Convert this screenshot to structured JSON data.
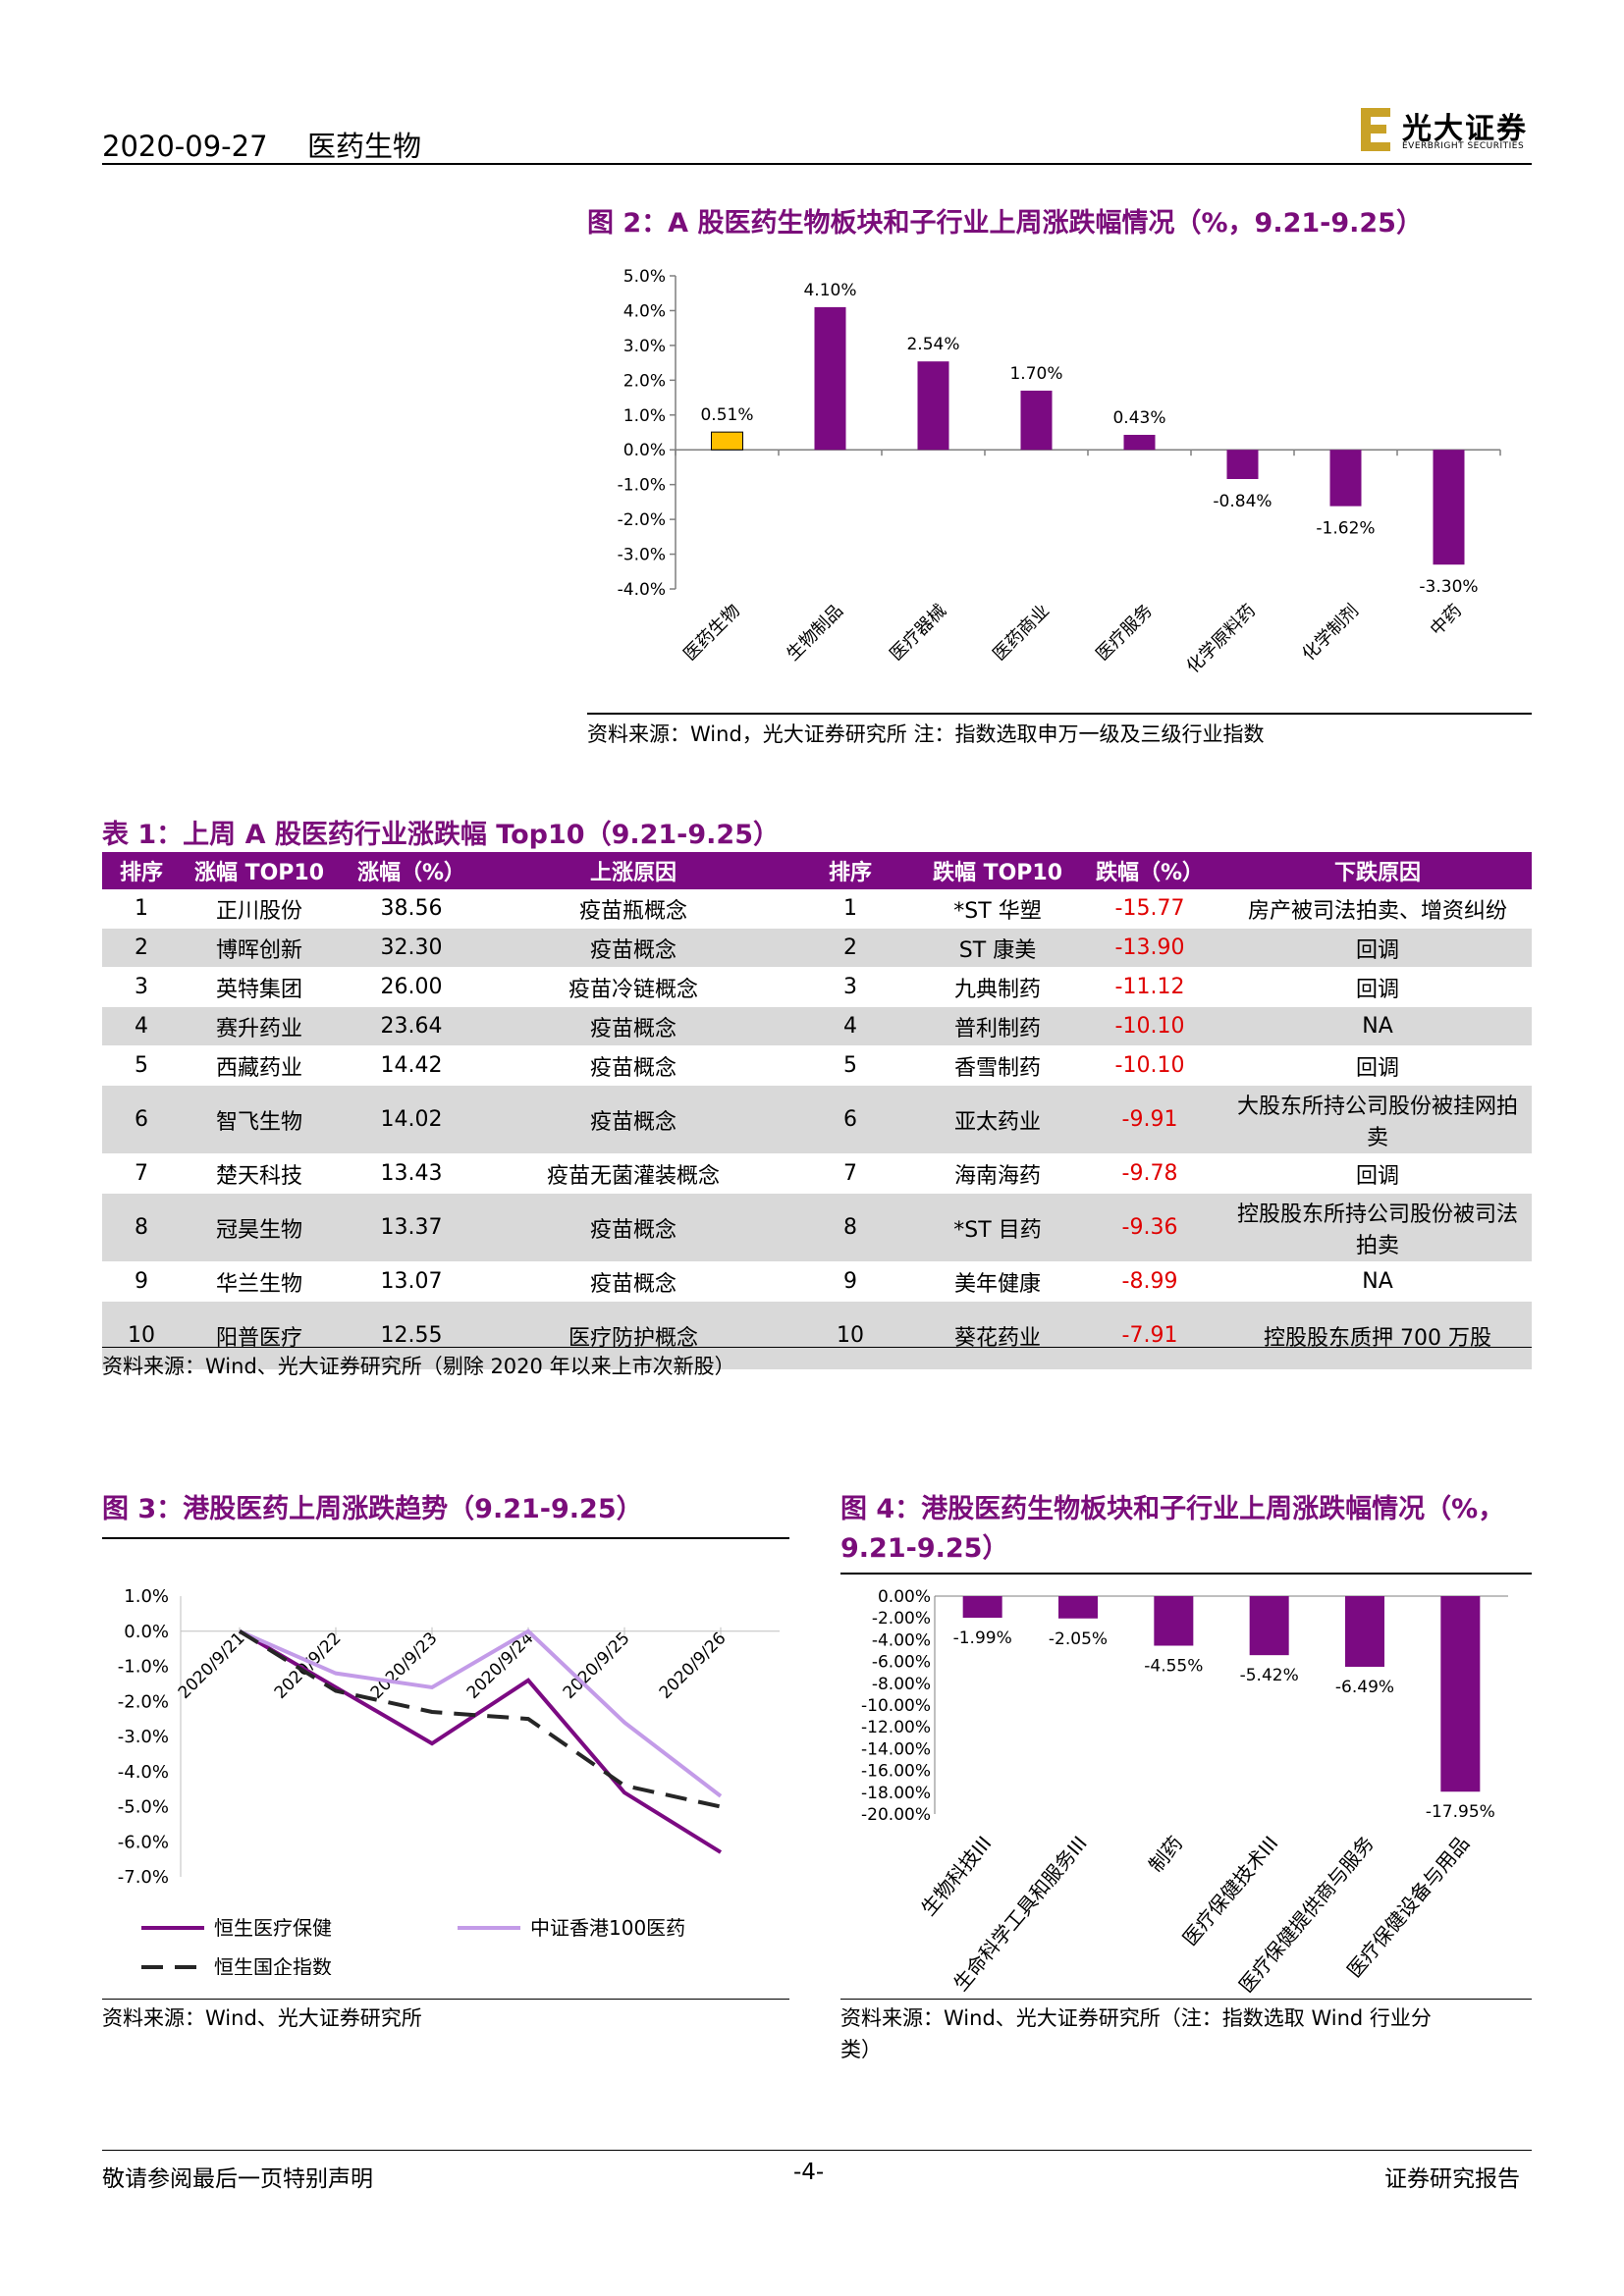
{
  "header": {
    "date": "2020-09-27",
    "section": "医药生物",
    "logo_cn": "光大证券",
    "logo_en": "EVERBRIGHT SECURITIES",
    "logo_color": "#c9a227"
  },
  "fig2": {
    "title": "图 2：A 股医药生物板块和子行业上周涨跌幅情况（%，9.21-9.25）",
    "source": "资料来源：Wind，光大证券研究所  注：指数选取申万一级及三级行业指数",
    "chart_data": {
      "type": "bar",
      "categories": [
        "医药生物",
        "生物制品",
        "医疗器械",
        "医药商业",
        "医疗服务",
        "化学原料药",
        "化学制剂",
        "中药"
      ],
      "values": [
        0.51,
        4.1,
        2.54,
        1.7,
        0.43,
        -0.84,
        -1.62,
        -3.3
      ],
      "value_labels": [
        "0.51%",
        "4.10%",
        "2.54%",
        "1.70%",
        "0.43%",
        "-0.84%",
        "-1.62%",
        "-3.30%"
      ],
      "yticks": [
        "5.0%",
        "4.0%",
        "3.0%",
        "2.0%",
        "1.0%",
        "0.0%",
        "-1.0%",
        "-2.0%",
        "-3.0%",
        "-4.0%"
      ],
      "ylim": [
        -4,
        5
      ],
      "colors": {
        "highlight": "#ffc000",
        "bar": "#7b0a82"
      }
    }
  },
  "table1": {
    "title": "表 1：上周 A 股医药行业涨跌幅 Top10（9.21-9.25）",
    "headers": [
      "排序",
      "涨幅 TOP10",
      "涨幅（%）",
      "上涨原因",
      "排序",
      "跌幅 TOP10",
      "跌幅（%）",
      "下跌原因"
    ],
    "rows": [
      [
        "1",
        "正川股份",
        "38.56",
        "疫苗瓶概念",
        "1",
        "*ST 华塑",
        "-15.77",
        "房产被司法拍卖、增资纠纷"
      ],
      [
        "2",
        "博晖创新",
        "32.30",
        "疫苗概念",
        "2",
        "ST 康美",
        "-13.90",
        "回调"
      ],
      [
        "3",
        "英特集团",
        "26.00",
        "疫苗冷链概念",
        "3",
        "九典制药",
        "-11.12",
        "回调"
      ],
      [
        "4",
        "赛升药业",
        "23.64",
        "疫苗概念",
        "4",
        "普利制药",
        "-10.10",
        "NA"
      ],
      [
        "5",
        "西藏药业",
        "14.42",
        "疫苗概念",
        "5",
        "香雪制药",
        "-10.10",
        "回调"
      ],
      [
        "6",
        "智飞生物",
        "14.02",
        "疫苗概念",
        "6",
        "亚太药业",
        "-9.91",
        "大股东所持公司股份被挂网拍卖"
      ],
      [
        "7",
        "楚天科技",
        "13.43",
        "疫苗无菌灌装概念",
        "7",
        "海南海药",
        "-9.78",
        "回调"
      ],
      [
        "8",
        "冠昊生物",
        "13.37",
        "疫苗概念",
        "8",
        "*ST 目药",
        "-9.36",
        "控股股东所持公司股份被司法拍卖"
      ],
      [
        "9",
        "华兰生物",
        "13.07",
        "疫苗概念",
        "9",
        "美年健康",
        "-8.99",
        "NA"
      ],
      [
        "10",
        "阳普医疗",
        "12.55",
        "医疗防护概念",
        "10",
        "葵花药业",
        "-7.91",
        "控股股东质押 700 万股"
      ]
    ],
    "source": "资料来源：Wind、光大证券研究所（剔除 2020 年以来上市次新股）"
  },
  "fig3": {
    "title": "图 3：港股医药上周涨跌趋势（9.21-9.25）",
    "source": "资料来源：Wind、光大证券研究所",
    "chart_data": {
      "type": "line",
      "x": [
        "2020/9/21",
        "2020/9/22",
        "2020/9/23",
        "2020/9/24",
        "2020/9/25",
        "2020/9/26"
      ],
      "yticks": [
        "1.0%",
        "0.0%",
        "-1.0%",
        "-2.0%",
        "-3.0%",
        "-4.0%",
        "-5.0%",
        "-6.0%",
        "-7.0%"
      ],
      "ylim": [
        -7,
        1
      ],
      "series": [
        {
          "name": "恒生医疗保健",
          "color": "#7b0a82",
          "values": [
            0.0,
            -1.6,
            -3.2,
            -1.4,
            -4.6,
            -6.3
          ]
        },
        {
          "name": "中证香港100医药",
          "color": "#c39be8",
          "values": [
            0.0,
            -1.2,
            -1.6,
            0.0,
            -2.6,
            -4.7
          ]
        },
        {
          "name": "恒生国企指数",
          "color": "#262626",
          "values": [
            0.0,
            -1.7,
            -2.3,
            -2.5,
            -4.4,
            -5.0
          ]
        }
      ]
    }
  },
  "fig4": {
    "title_line1": "图 4：港股医药生物板块和子行业上周涨跌幅情况（%，",
    "title_line2": "9.21-9.25）",
    "source_line1": "资料来源：Wind、光大证券研究所（注：指数选取 Wind 行业分",
    "source_line2": "类）",
    "chart_data": {
      "type": "bar",
      "categories": [
        "生物科技III",
        "生命科学工具和服务III",
        "制药",
        "医疗保健技术III",
        "医疗保健提供商与服务",
        "医疗保健设备与用品"
      ],
      "values": [
        -1.99,
        -2.05,
        -4.55,
        -5.42,
        -6.49,
        -17.95
      ],
      "value_labels": [
        "-1.99%",
        "-2.05%",
        "-4.55%",
        "-5.42%",
        "-6.49%",
        "-17.95%"
      ],
      "yticks": [
        "0.00%",
        "-2.00%",
        "-4.00%",
        "-6.00%",
        "-8.00%",
        "-10.00%",
        "-12.00%",
        "-14.00%",
        "-16.00%",
        "-18.00%",
        "-20.00%"
      ],
      "ylim": [
        -20,
        0
      ],
      "colors": {
        "bar": "#7b0a82"
      }
    }
  },
  "footer": {
    "left": "敬请参阅最后一页特别声明",
    "center": "-4-",
    "right": "证券研究报告"
  }
}
